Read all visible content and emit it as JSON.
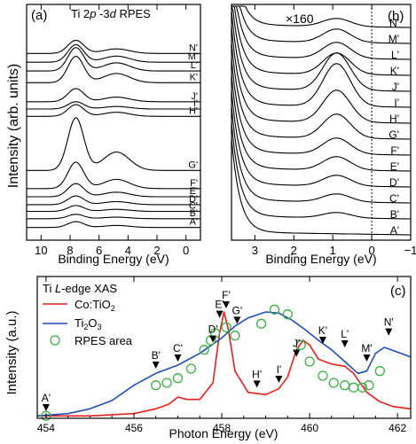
{
  "chart_data": [
    {
      "type": "line",
      "panel_label": "(a)",
      "title": "Ti 2p -3d RPES",
      "title_parts": {
        "pre": "Ti 2",
        "p": "p",
        "mid": " -3",
        "d": "d",
        "post": " RPES"
      },
      "xlabel": "Binding Energy (eV)",
      "ylabel": "Intensity (arb. units)",
      "xlim": [
        11,
        -1
      ],
      "x_ticks": [
        10,
        8,
        6,
        4,
        2,
        0
      ],
      "x_tick_labels": [
        "10",
        "8",
        "6",
        "4",
        "2",
        "0"
      ],
      "grid": false,
      "series": [
        {
          "name": "A'",
          "baseline": 0.0,
          "peak": 0.2
        },
        {
          "name": "B'",
          "baseline": 0.3,
          "peak": 0.15
        },
        {
          "name": "C'",
          "baseline": 0.55,
          "peak": 0.2
        },
        {
          "name": "D'",
          "baseline": 0.78,
          "peak": 0.3
        },
        {
          "name": "E'",
          "baseline": 1.05,
          "peak": 0.45
        },
        {
          "name": "F'",
          "baseline": 1.33,
          "peak": 0.9
        },
        {
          "name": "G'",
          "baseline": 1.95,
          "peak": 1.8
        },
        {
          "name": "H'",
          "baseline": 3.8,
          "peak": 0.4
        },
        {
          "name": "I'",
          "baseline": 4.05,
          "peak": 0.25
        },
        {
          "name": "J'",
          "baseline": 4.3,
          "peak": 0.45
        },
        {
          "name": "K'",
          "baseline": 4.95,
          "peak": 0.9
        },
        {
          "name": "L'",
          "baseline": 5.35,
          "peak": 0.8
        },
        {
          "name": "M'",
          "baseline": 5.65,
          "peak": 0.6
        },
        {
          "name": "N'",
          "baseline": 5.95,
          "peak": 0.45
        }
      ]
    },
    {
      "type": "line",
      "panel_label": "(b)",
      "annotation": "×160",
      "xlabel": "Binding Energy (eV)",
      "ylabel": "",
      "xlim": [
        3.6,
        -1
      ],
      "x_ticks": [
        3,
        2,
        1,
        0,
        -1
      ],
      "x_tick_labels": [
        "3",
        "2",
        "1",
        "0",
        "−1"
      ],
      "reference_line_x": 0,
      "grid": false,
      "series": [
        {
          "name": "A'",
          "baseline": 0.0,
          "bump": 0.0
        },
        {
          "name": "B'",
          "baseline": 0.3,
          "bump": 0.1
        },
        {
          "name": "C'",
          "baseline": 0.6,
          "bump": 0.15
        },
        {
          "name": "D'",
          "baseline": 0.9,
          "bump": 0.2
        },
        {
          "name": "E'",
          "baseline": 1.2,
          "bump": 0.25
        },
        {
          "name": "F'",
          "baseline": 1.5,
          "bump": 0.3
        },
        {
          "name": "G'",
          "baseline": 1.8,
          "bump": 0.45
        },
        {
          "name": "H'",
          "baseline": 2.1,
          "bump": 0.6
        },
        {
          "name": "I'",
          "baseline": 2.4,
          "bump": 0.8
        },
        {
          "name": "J'",
          "baseline": 2.7,
          "bump": 0.7
        },
        {
          "name": "K'",
          "baseline": 3.0,
          "bump": 0.4
        },
        {
          "name": "L'",
          "baseline": 3.3,
          "bump": 0.3
        },
        {
          "name": "M'",
          "baseline": 3.6,
          "bump": 0.25
        },
        {
          "name": "N'",
          "baseline": 3.9,
          "bump": 0.15
        }
      ]
    },
    {
      "type": "line",
      "panel_label": "(c)",
      "title": "Ti L-edge XAS",
      "title_parts": {
        "pre": "Ti ",
        "L": "L",
        "post": "-edge XAS"
      },
      "xlabel": "Photon Energy (eV)",
      "ylabel": "Intensity (a.u.)",
      "xlim": [
        453.8,
        462.3
      ],
      "ylim": [
        0,
        1.2
      ],
      "x_ticks": [
        454,
        456,
        458,
        460,
        462
      ],
      "x_tick_labels": [
        "454",
        "456",
        "458",
        "460",
        "462"
      ],
      "grid": false,
      "legend": {
        "placement": "top-left",
        "entries": [
          {
            "label": "Co:TiO2",
            "label_main": "Co:TiO",
            "label_sub": "2",
            "color": "#e8201c",
            "marker": "line"
          },
          {
            "label": "Ti2O3",
            "label_main": "Ti",
            "label_sub": "2",
            "label_tail": "O",
            "label_sub2": "3",
            "color": "#1f4fb4",
            "marker": "line"
          },
          {
            "label": "RPES area",
            "color": "#3cb043",
            "marker": "open-circle"
          }
        ]
      },
      "series": [
        {
          "name": "Co:TiO2",
          "color": "#e8201c",
          "x": [
            453.8,
            455.0,
            456.0,
            456.5,
            456.8,
            457.0,
            457.2,
            457.5,
            457.8,
            457.95,
            458.05,
            458.15,
            458.3,
            458.6,
            459.0,
            459.3,
            459.5,
            459.7,
            459.85,
            460.0,
            460.2,
            460.5,
            460.8,
            461.0,
            461.3,
            461.6,
            461.9,
            462.3
          ],
          "y": [
            0.02,
            0.02,
            0.04,
            0.08,
            0.12,
            0.18,
            0.16,
            0.16,
            0.3,
            0.72,
            0.9,
            0.75,
            0.4,
            0.22,
            0.2,
            0.25,
            0.35,
            0.58,
            0.66,
            0.62,
            0.5,
            0.46,
            0.44,
            0.38,
            0.22,
            0.14,
            0.1,
            0.08
          ]
        },
        {
          "name": "Ti2O3",
          "color": "#1f4fb4",
          "x": [
            453.8,
            454.5,
            455.0,
            455.5,
            456.0,
            456.5,
            457.0,
            457.5,
            458.0,
            458.3,
            458.6,
            459.0,
            459.3,
            459.6,
            459.9,
            460.2,
            460.5,
            460.8,
            461.1,
            461.3,
            461.5,
            461.7,
            462.0,
            462.3
          ],
          "y": [
            0.02,
            0.04,
            0.08,
            0.15,
            0.28,
            0.38,
            0.45,
            0.55,
            0.68,
            0.78,
            0.85,
            0.9,
            0.89,
            0.83,
            0.75,
            0.66,
            0.58,
            0.48,
            0.38,
            0.4,
            0.55,
            0.6,
            0.56,
            0.52
          ]
        },
        {
          "name": "RPES area",
          "color": "#3cb043",
          "marker": "open-circle",
          "x": [
            454.0,
            456.5,
            456.75,
            457.0,
            457.3,
            457.6,
            457.75,
            457.85,
            458.1,
            458.3,
            458.9,
            459.2,
            459.5,
            459.8,
            460.0,
            460.3,
            460.55,
            460.8,
            461.0,
            461.2,
            461.35,
            461.6
          ],
          "y": [
            0.02,
            0.28,
            0.3,
            0.34,
            0.42,
            0.58,
            0.66,
            0.72,
            0.77,
            0.7,
            0.8,
            0.92,
            0.88,
            0.62,
            0.48,
            0.36,
            0.3,
            0.28,
            0.26,
            0.26,
            0.28,
            0.4
          ]
        }
      ],
      "markers": [
        {
          "label": "A'",
          "x": 454.0,
          "y": 0.06
        },
        {
          "label": "B'",
          "x": 456.5,
          "y": 0.42
        },
        {
          "label": "C'",
          "x": 457.0,
          "y": 0.48
        },
        {
          "label": "D'",
          "x": 457.8,
          "y": 0.64
        },
        {
          "label": "E'",
          "x": 457.95,
          "y": 0.85
        },
        {
          "label": "F'",
          "x": 458.1,
          "y": 0.93
        },
        {
          "label": "G'",
          "x": 458.35,
          "y": 0.8
        },
        {
          "label": "H'",
          "x": 458.8,
          "y": 0.26
        },
        {
          "label": "I'",
          "x": 459.3,
          "y": 0.3
        },
        {
          "label": "J'",
          "x": 459.7,
          "y": 0.52
        },
        {
          "label": "K'",
          "x": 460.3,
          "y": 0.63
        },
        {
          "label": "L'",
          "x": 460.8,
          "y": 0.6
        },
        {
          "label": "M'",
          "x": 461.3,
          "y": 0.48
        },
        {
          "label": "N'",
          "x": 461.8,
          "y": 0.7
        }
      ]
    }
  ]
}
